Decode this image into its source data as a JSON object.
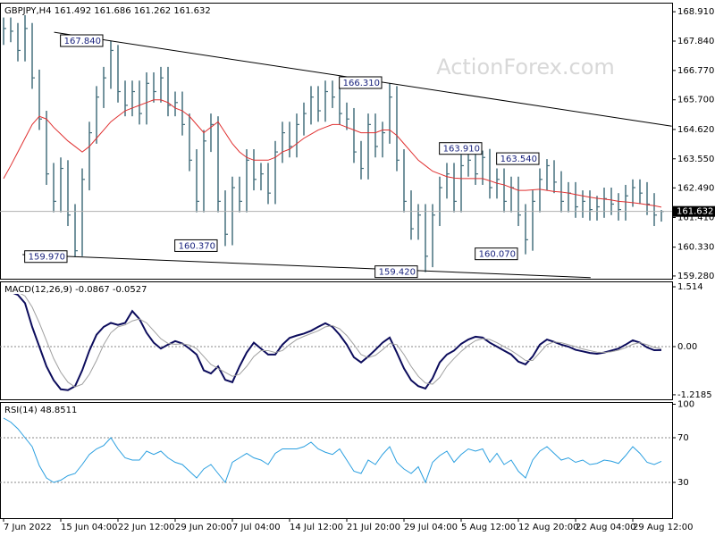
{
  "chart_data": [
    {
      "type": "ohlc",
      "title": "GBPJPY,H4 161.492 161.686 161.262 161.632",
      "watermark": "ActionForex.com",
      "color": "#46707e",
      "xlim": [
        -0.5,
        93.5
      ],
      "ylim": [
        159.18,
        169.24
      ],
      "yticks": [
        {
          "value": 168.91,
          "label": "168.910"
        },
        {
          "value": 167.84,
          "label": "167.840"
        },
        {
          "value": 166.77,
          "label": "166.770"
        },
        {
          "value": 165.7,
          "label": "165.700"
        },
        {
          "value": 164.62,
          "label": "164.620"
        },
        {
          "value": 163.55,
          "label": "163.550"
        },
        {
          "value": 162.49,
          "label": "162.490"
        },
        {
          "value": 161.41,
          "label": "161.410"
        },
        {
          "value": 160.33,
          "label": "160.330"
        },
        {
          "value": 159.28,
          "label": "159.280"
        }
      ],
      "high": [
        168.7,
        168.7,
        168.5,
        168.8,
        168.5,
        166.8,
        165.3,
        163.4,
        163.6,
        163.5,
        161.9,
        163.2,
        164.9,
        166.2,
        166.9,
        167.84,
        167.7,
        166.4,
        166.4,
        166.4,
        166.7,
        166.7,
        166.9,
        166.9,
        166.0,
        166.0,
        165.2,
        163.9,
        164.6,
        165.2,
        165.1,
        162.4,
        162.9,
        162.9,
        163.9,
        163.9,
        163.4,
        163.4,
        164.2,
        164.9,
        164.9,
        165.2,
        165.6,
        166.2,
        166.2,
        166.4,
        166.4,
        166.2,
        165.6,
        165.4,
        164.2,
        165.2,
        165.2,
        164.9,
        166.31,
        166.2,
        163.9,
        162.4,
        161.9,
        161.9,
        161.9,
        162.9,
        163.4,
        163.4,
        163.7,
        163.9,
        163.9,
        163.85,
        163.91,
        163.2,
        163.2,
        162.9,
        162.9,
        161.9,
        162.4,
        163.2,
        163.54,
        163.5,
        163.1,
        162.7,
        162.7,
        162.4,
        162.4,
        162.2,
        162.5,
        162.5,
        162.3,
        162.6,
        162.8,
        162.8,
        162.7,
        162.3,
        161.686
      ],
      "low": [
        167.7,
        167.8,
        167.1,
        167.1,
        166.1,
        164.6,
        162.6,
        161.6,
        161.6,
        161.1,
        159.97,
        160.0,
        162.4,
        164.1,
        165.4,
        166.1,
        165.6,
        165.1,
        165.1,
        164.8,
        164.8,
        165.6,
        165.6,
        165.1,
        165.1,
        164.4,
        163.1,
        161.6,
        161.6,
        163.8,
        161.6,
        160.37,
        160.4,
        161.6,
        161.6,
        162.4,
        162.4,
        161.9,
        161.9,
        163.4,
        163.6,
        163.6,
        164.4,
        164.8,
        164.9,
        164.9,
        165.4,
        164.8,
        164.6,
        163.4,
        162.8,
        162.8,
        163.6,
        163.6,
        164.1,
        163.1,
        161.6,
        160.6,
        160.6,
        159.42,
        159.6,
        161.1,
        162.1,
        161.6,
        161.6,
        162.9,
        162.6,
        162.6,
        162.1,
        162.1,
        161.6,
        161.6,
        161.1,
        160.07,
        160.2,
        161.6,
        162.4,
        162.3,
        161.6,
        161.6,
        161.4,
        161.4,
        161.3,
        161.3,
        161.4,
        161.5,
        161.3,
        161.3,
        161.8,
        161.9,
        161.5,
        161.1,
        161.262
      ],
      "close": [
        168.3,
        168.2,
        167.5,
        168.3,
        166.5,
        165.0,
        163.0,
        162.0,
        163.2,
        161.5,
        160.2,
        162.8,
        164.5,
        165.8,
        166.5,
        167.5,
        166.0,
        165.5,
        166.0,
        165.2,
        166.3,
        166.0,
        166.5,
        165.5,
        165.6,
        164.8,
        163.5,
        162.0,
        164.2,
        164.8,
        162.0,
        160.8,
        162.5,
        162.0,
        163.5,
        162.8,
        163.0,
        162.3,
        163.8,
        164.5,
        164.0,
        164.8,
        165.2,
        165.8,
        165.3,
        166.0,
        165.8,
        165.2,
        165.0,
        163.8,
        163.2,
        164.8,
        164.0,
        164.5,
        165.8,
        163.5,
        162.0,
        161.0,
        161.5,
        160.0,
        161.5,
        162.5,
        163.0,
        162.0,
        163.3,
        163.5,
        163.0,
        163.6,
        162.5,
        162.8,
        162.0,
        162.5,
        161.5,
        160.6,
        162.0,
        162.8,
        163.3,
        162.7,
        162.0,
        162.3,
        161.8,
        162.0,
        161.7,
        161.8,
        162.1,
        161.9,
        161.7,
        162.2,
        162.5,
        162.3,
        161.9,
        161.5,
        161.632
      ],
      "ma": {
        "color": "#e03030",
        "values": [
          162.83,
          163.3,
          163.8,
          164.3,
          164.8,
          165.1,
          165.0,
          164.7,
          164.45,
          164.2,
          164.0,
          163.8,
          164.0,
          164.3,
          164.6,
          164.9,
          165.1,
          165.3,
          165.4,
          165.5,
          165.6,
          165.7,
          165.7,
          165.6,
          165.4,
          165.3,
          165.1,
          164.8,
          164.5,
          164.7,
          164.9,
          164.5,
          164.1,
          163.8,
          163.6,
          163.5,
          163.5,
          163.5,
          163.6,
          163.8,
          163.9,
          164.1,
          164.3,
          164.45,
          164.6,
          164.7,
          164.8,
          164.8,
          164.7,
          164.6,
          164.5,
          164.5,
          164.5,
          164.6,
          164.6,
          164.4,
          164.1,
          163.8,
          163.5,
          163.3,
          163.1,
          163.0,
          162.9,
          162.85,
          162.83,
          162.83,
          162.83,
          162.83,
          162.75,
          162.66,
          162.6,
          162.5,
          162.4,
          162.4,
          162.42,
          162.44,
          162.4,
          162.36,
          162.34,
          162.3,
          162.25,
          162.2,
          162.15,
          162.11,
          162.08,
          162.05,
          162.0,
          161.98,
          161.95,
          161.92,
          161.88,
          161.84,
          161.79
        ]
      },
      "last_price": 161.632,
      "annotations": [
        {
          "x": 15,
          "value": 167.84,
          "label": "167.840"
        },
        {
          "x": 54,
          "value": 166.31,
          "label": "166.310"
        },
        {
          "x": 68,
          "value": 163.91,
          "label": "163.910"
        },
        {
          "x": 76,
          "value": 163.54,
          "label": "163.540"
        },
        {
          "x": 10,
          "value": 159.97,
          "label": "159.970"
        },
        {
          "x": 31,
          "value": 160.37,
          "label": "160.370"
        },
        {
          "x": 59,
          "value": 159.42,
          "label": "159.420"
        },
        {
          "x": 73,
          "value": 160.07,
          "label": "160.070"
        }
      ],
      "trendlines": [
        {
          "x": [
            7.07,
            93.45
          ],
          "y": [
            168.16,
            164.74
          ]
        },
        {
          "x": [
            2.65,
            82.1
          ],
          "y": [
            160.06,
            159.22
          ]
        }
      ]
    },
    {
      "type": "line",
      "title": "MACD(12,26,9) -0.0867 -0.0527",
      "xlim": [
        -0.5,
        93.5
      ],
      "ylim": [
        -1.333,
        1.65
      ],
      "yticks": [
        {
          "value": 1.514,
          "label": "1.514"
        },
        {
          "value": 0,
          "label": "0.00"
        },
        {
          "value": -1.2185,
          "label": "-1.2185"
        }
      ],
      "levels": [
        0
      ],
      "series": [
        {
          "color": "#0c0c5c",
          "width": 2,
          "values": [
            1.42,
            1.38,
            1.31,
            1.1,
            0.5,
            0.0,
            -0.5,
            -0.85,
            -1.08,
            -1.1,
            -1.0,
            -0.6,
            -0.1,
            0.3,
            0.5,
            0.6,
            0.55,
            0.6,
            0.9,
            0.7,
            0.35,
            0.1,
            -0.05,
            0.05,
            0.14,
            0.08,
            -0.05,
            -0.2,
            -0.6,
            -0.68,
            -0.5,
            -0.84,
            -0.9,
            -0.5,
            -0.15,
            0.1,
            -0.05,
            -0.2,
            -0.2,
            0.05,
            0.22,
            0.28,
            0.33,
            0.4,
            0.5,
            0.59,
            0.5,
            0.3,
            0.05,
            -0.27,
            -0.4,
            -0.25,
            -0.08,
            0.1,
            0.23,
            -0.15,
            -0.55,
            -0.85,
            -1.0,
            -1.06,
            -0.8,
            -0.4,
            -0.2,
            -0.1,
            0.07,
            0.18,
            0.25,
            0.23,
            0.1,
            0.0,
            -0.1,
            -0.2,
            -0.38,
            -0.45,
            -0.25,
            0.05,
            0.18,
            0.12,
            0.05,
            0.0,
            -0.08,
            -0.12,
            -0.16,
            -0.18,
            -0.15,
            -0.1,
            -0.05,
            0.05,
            0.16,
            0.1,
            -0.02,
            -0.09,
            -0.0867
          ]
        },
        {
          "color": "#a0a0a0",
          "width": 1,
          "values": [
            1.45,
            1.42,
            1.38,
            1.28,
            1.0,
            0.6,
            0.15,
            -0.3,
            -0.65,
            -0.9,
            -1.02,
            -0.95,
            -0.7,
            -0.35,
            0.05,
            0.35,
            0.5,
            0.55,
            0.65,
            0.7,
            0.6,
            0.4,
            0.2,
            0.08,
            0.06,
            0.07,
            0.04,
            -0.05,
            -0.25,
            -0.45,
            -0.55,
            -0.65,
            -0.75,
            -0.7,
            -0.5,
            -0.25,
            -0.1,
            -0.1,
            -0.15,
            -0.1,
            0.05,
            0.18,
            0.26,
            0.33,
            0.4,
            0.5,
            0.53,
            0.45,
            0.28,
            0.05,
            -0.2,
            -0.28,
            -0.22,
            -0.08,
            0.08,
            0.05,
            -0.2,
            -0.5,
            -0.75,
            -0.92,
            -0.95,
            -0.78,
            -0.5,
            -0.3,
            -0.12,
            0.03,
            0.15,
            0.2,
            0.18,
            0.1,
            0.0,
            -0.1,
            -0.22,
            -0.35,
            -0.35,
            -0.15,
            0.05,
            0.12,
            0.1,
            0.05,
            0.0,
            -0.06,
            -0.1,
            -0.14,
            -0.15,
            -0.13,
            -0.09,
            -0.03,
            0.06,
            0.1,
            0.05,
            -0.02,
            -0.0527
          ]
        }
      ]
    },
    {
      "type": "line",
      "title": "RSI(14) 48.8511",
      "xlim": [
        -0.5,
        93.5
      ],
      "ylim": [
        -2,
        102
      ],
      "yticks": [
        100,
        70,
        30
      ],
      "levels": [
        70,
        30
      ],
      "xticks": [
        {
          "value": 0,
          "label": "7 Jun 2022"
        },
        {
          "value": 8,
          "label": "15 Jun 04:00"
        },
        {
          "value": 16,
          "label": "22 Jun 12:00"
        },
        {
          "value": 24,
          "label": "29 Jun 20:00"
        },
        {
          "value": 32,
          "label": "7 Jul 04:00"
        },
        {
          "value": 40,
          "label": "14 Jul 12:00"
        },
        {
          "value": 48,
          "label": "21 Jul 20:00"
        },
        {
          "value": 56,
          "label": "29 Jul 04:00"
        },
        {
          "value": 64,
          "label": "5 Aug 12:00"
        },
        {
          "value": 72,
          "label": "12 Aug 20:00"
        },
        {
          "value": 80,
          "label": "22 Aug 04:00"
        },
        {
          "value": 88,
          "label": "29 Aug 12:00"
        }
      ],
      "series": [
        {
          "color": "#2a9fe0",
          "width": 1,
          "values": [
            87.6,
            84,
            78,
            70,
            62,
            45,
            34,
            30,
            32,
            36,
            38,
            46,
            55,
            60,
            63,
            70,
            60,
            52,
            50,
            50,
            58,
            55,
            58,
            52,
            48,
            46,
            40,
            34,
            42,
            46,
            38,
            30,
            48,
            52,
            56,
            52,
            50,
            46,
            56,
            60,
            60,
            60,
            62,
            66,
            60,
            57,
            55,
            60,
            50,
            40,
            38,
            50,
            46,
            55,
            62,
            48,
            42,
            38,
            44,
            30,
            48,
            54,
            58,
            48,
            55,
            60,
            58,
            60,
            48,
            56,
            46,
            50,
            40,
            34,
            50,
            58,
            62,
            56,
            50,
            52,
            48,
            50,
            46,
            47,
            50,
            49,
            47,
            54,
            62,
            56,
            48,
            46,
            48.8511
          ]
        }
      ]
    }
  ]
}
